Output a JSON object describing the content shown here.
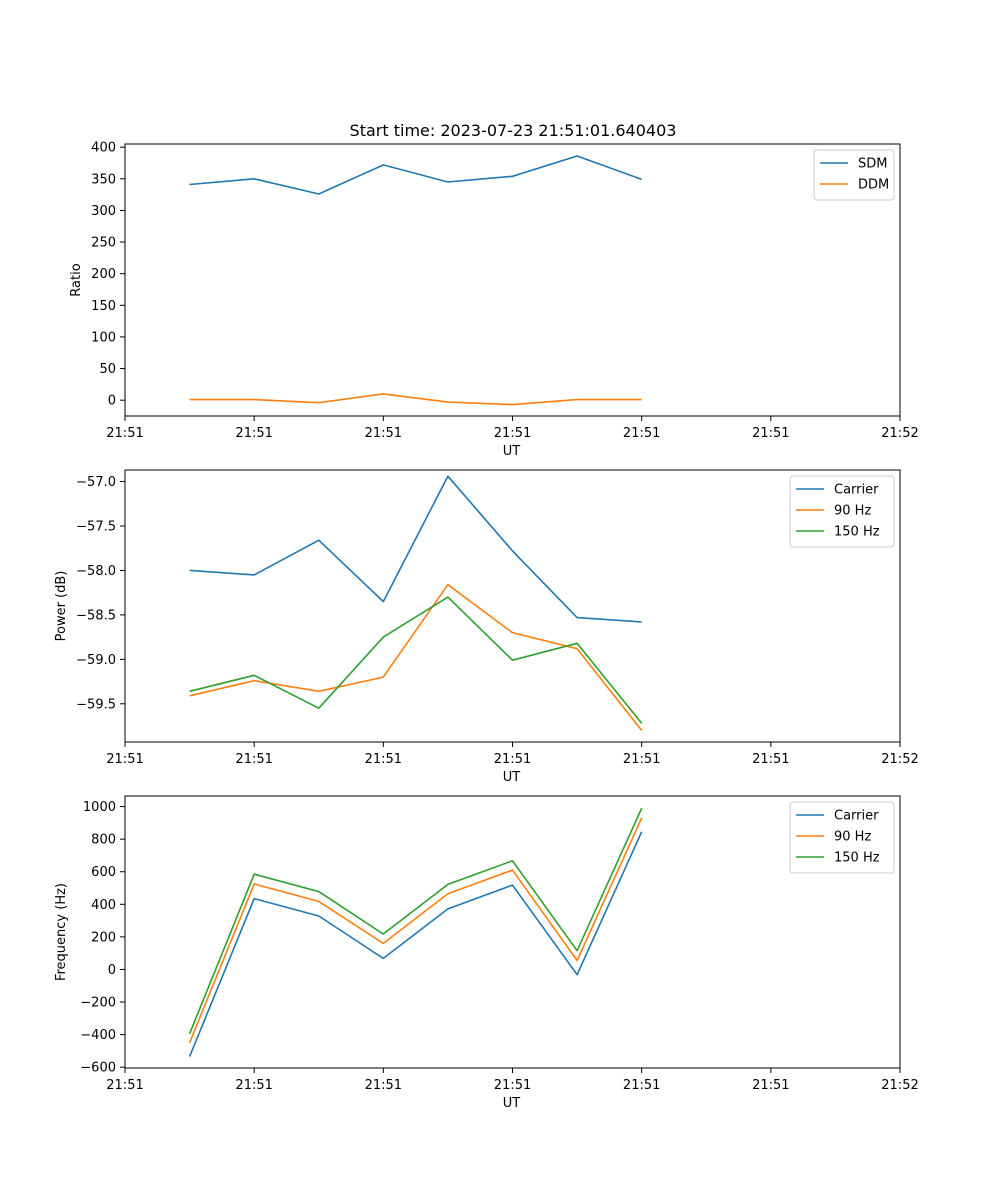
{
  "figure_title": "Start time: 2023-07-23 21:51:01.640403",
  "colors": {
    "blue": "#1f77b4",
    "orange": "#ff7f0e",
    "green": "#2ca02c"
  },
  "chart_data": [
    {
      "type": "line",
      "title": "Start time: 2023-07-23 21:51:01.640403",
      "xlabel": "UT",
      "ylabel": "Ratio",
      "x_tick_labels": [
        "21:51",
        "21:51",
        "21:51",
        "21:51",
        "21:51",
        "21:51",
        "21:52"
      ],
      "x": [
        1,
        2,
        3,
        4,
        5,
        6,
        7,
        8
      ],
      "xlim": [
        0,
        12
      ],
      "xticks": [
        0,
        2,
        4,
        6,
        8,
        10,
        12
      ],
      "ylim": [
        -25,
        405
      ],
      "yticks": [
        0,
        50,
        100,
        150,
        200,
        250,
        300,
        350,
        400
      ],
      "ytick_labels": [
        "0",
        "50",
        "100",
        "150",
        "200",
        "250",
        "300",
        "350",
        "400"
      ],
      "legend": "top-right",
      "series": [
        {
          "name": "SDM",
          "color": "#1f77b4",
          "values": [
            341,
            350,
            326,
            372,
            345,
            354,
            386,
            349
          ]
        },
        {
          "name": "DDM",
          "color": "#ff7f0e",
          "values": [
            1,
            1,
            -4,
            10,
            -3,
            -7,
            1,
            1
          ]
        }
      ]
    },
    {
      "type": "line",
      "title": "",
      "xlabel": "UT",
      "ylabel": "Power (dB)",
      "x_tick_labels": [
        "21:51",
        "21:51",
        "21:51",
        "21:51",
        "21:51",
        "21:51",
        "21:52"
      ],
      "x": [
        1,
        2,
        3,
        4,
        5,
        6,
        7,
        8
      ],
      "xlim": [
        0,
        12
      ],
      "xticks": [
        0,
        2,
        4,
        6,
        8,
        10,
        12
      ],
      "ylim": [
        -59.93,
        -56.87
      ],
      "yticks": [
        -59.5,
        -59.0,
        -58.5,
        -58.0,
        -57.5,
        -57.0
      ],
      "ytick_labels": [
        "−59.5",
        "−59.0",
        "−58.5",
        "−58.0",
        "−57.5",
        "−57.0"
      ],
      "legend": "top-right",
      "series": [
        {
          "name": "Carrier",
          "color": "#1f77b4",
          "values": [
            -58.0,
            -58.05,
            -57.66,
            -58.35,
            -56.94,
            -57.78,
            -58.53,
            -58.58
          ]
        },
        {
          "name": "90 Hz",
          "color": "#ff7f0e",
          "values": [
            -59.41,
            -59.24,
            -59.36,
            -59.2,
            -58.16,
            -58.7,
            -58.88,
            -59.8
          ]
        },
        {
          "name": "150 Hz",
          "color": "#2ca02c",
          "values": [
            -59.36,
            -59.18,
            -59.55,
            -58.75,
            -58.3,
            -59.01,
            -58.82,
            -59.72
          ]
        }
      ]
    },
    {
      "type": "line",
      "title": "",
      "xlabel": "UT",
      "ylabel": "Frequency (Hz)",
      "x_tick_labels": [
        "21:51",
        "21:51",
        "21:51",
        "21:51",
        "21:51",
        "21:51",
        "21:52"
      ],
      "x": [
        1,
        2,
        3,
        4,
        5,
        6,
        7,
        8
      ],
      "xlim": [
        0,
        12
      ],
      "xticks": [
        0,
        2,
        4,
        6,
        8,
        10,
        12
      ],
      "ylim": [
        -605,
        1065
      ],
      "yticks": [
        -600,
        -400,
        -200,
        0,
        200,
        400,
        600,
        800,
        1000
      ],
      "ytick_labels": [
        "−600",
        "−400",
        "−200",
        "0",
        "200",
        "400",
        "600",
        "800",
        "1000"
      ],
      "legend": "top-right",
      "series": [
        {
          "name": "Carrier",
          "color": "#1f77b4",
          "values": [
            -535,
            435,
            328,
            68,
            372,
            518,
            -32,
            845
          ]
        },
        {
          "name": "90 Hz",
          "color": "#ff7f0e",
          "values": [
            -450,
            525,
            418,
            160,
            465,
            610,
            55,
            930
          ]
        },
        {
          "name": "150 Hz",
          "color": "#2ca02c",
          "values": [
            -395,
            585,
            478,
            218,
            522,
            667,
            115,
            990
          ]
        }
      ]
    }
  ]
}
